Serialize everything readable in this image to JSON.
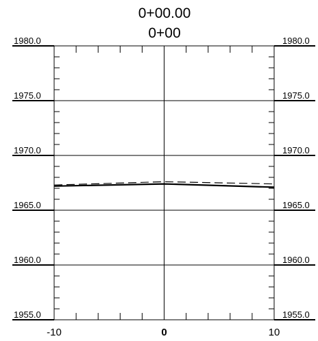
{
  "chart_data": {
    "type": "line",
    "title": "0+00.00",
    "subtitle": "0+00",
    "xlabel": "",
    "ylabel": "",
    "xlim": [
      -10,
      10
    ],
    "ylim": [
      1955,
      1980
    ],
    "x_ticks": [
      -10,
      0,
      10
    ],
    "x_tick_labels": [
      "-10",
      "0",
      "10"
    ],
    "y_ticks": [
      1955,
      1960,
      1965,
      1970,
      1975,
      1980
    ],
    "y_tick_labels": [
      "1955.0",
      "1960.0",
      "1965.0",
      "1970.0",
      "1975.0",
      "1980.0"
    ],
    "y_minor_step": 1,
    "x_minor_step": 2,
    "grid": true,
    "series": [
      {
        "style": "solid",
        "x": [
          -10,
          0,
          10
        ],
        "y": [
          1967.2,
          1967.4,
          1967.1
        ]
      },
      {
        "style": "dashed",
        "x": [
          -10,
          0,
          10
        ],
        "y": [
          1967.3,
          1967.6,
          1967.4
        ]
      }
    ]
  }
}
